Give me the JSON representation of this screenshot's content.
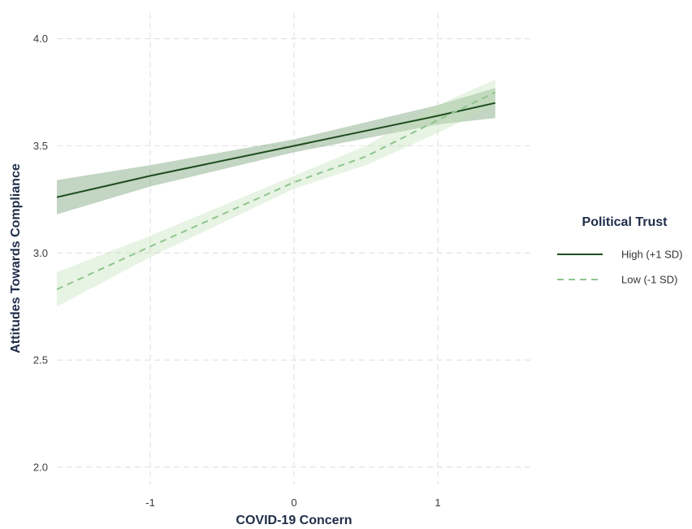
{
  "chart_data": {
    "type": "line",
    "xlabel": "COVID-19 Concern",
    "ylabel": "Attitudes Towards Compliance",
    "xlim": [
      -1.65,
      1.65
    ],
    "ylim": [
      1.92,
      4.12
    ],
    "x_ticks": [
      -1,
      0,
      1
    ],
    "y_ticks": [
      2.0,
      2.5,
      3.0,
      3.5,
      4.0
    ],
    "x_tick_labels": [
      "-1",
      "0",
      "1"
    ],
    "y_tick_labels": [
      "2.0",
      "2.5",
      "3.0",
      "3.5",
      "4.0"
    ],
    "grid": true,
    "legend": {
      "title": "Political Trust",
      "position": "right"
    },
    "series": [
      {
        "name": "High (+1 SD)",
        "line_style": "solid",
        "color": "#1e4d1e",
        "band_color": "#6f9a6f",
        "x": [
          -1.65,
          -1.0,
          0.0,
          1.0,
          1.4
        ],
        "y": [
          3.26,
          3.36,
          3.5,
          3.64,
          3.7
        ],
        "lower": [
          3.18,
          3.31,
          3.47,
          3.6,
          3.63
        ],
        "upper": [
          3.34,
          3.41,
          3.53,
          3.69,
          3.77
        ]
      },
      {
        "name": "Low (-1 SD)",
        "line_style": "dashed",
        "color": "#8fc58f",
        "band_color": "#bfe0b6",
        "x": [
          -1.65,
          -1.0,
          0.0,
          0.5,
          1.0,
          1.4
        ],
        "y": [
          2.83,
          3.03,
          3.33,
          3.45,
          3.62,
          3.75
        ],
        "lower": [
          2.75,
          2.98,
          3.3,
          3.41,
          3.56,
          3.69
        ],
        "upper": [
          2.91,
          3.08,
          3.36,
          3.5,
          3.69,
          3.81
        ]
      }
    ]
  }
}
